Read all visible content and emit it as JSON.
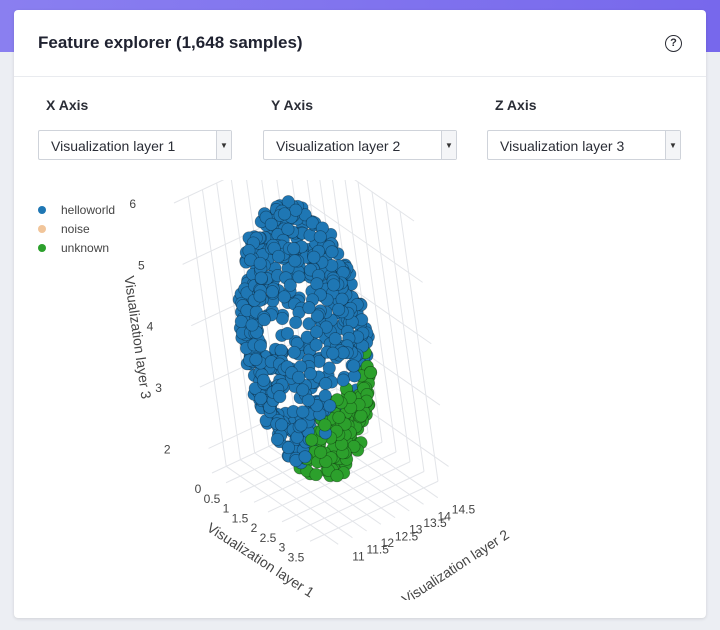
{
  "card": {
    "title": "Feature explorer (1,648 samples)"
  },
  "controls": {
    "x": {
      "label": "X Axis",
      "value": "Visualization layer 1"
    },
    "y": {
      "label": "Y Axis",
      "value": "Visualization layer 2"
    },
    "z": {
      "label": "Z Axis",
      "value": "Visualization layer 3"
    }
  },
  "icons": {
    "help": "help-circle-icon",
    "dropdown": "chevron-down-icon"
  },
  "chart_data": {
    "type": "scatter",
    "subtype": "3d",
    "xlabel": "Visualization layer 1",
    "ylabel": "Visualization layer 2",
    "zlabel": "Visualization layer 3",
    "x_ticks": [
      "0",
      "0.5",
      "1",
      "1.5",
      "2",
      "2.5",
      "3",
      "3.5"
    ],
    "y_ticks": [
      "11",
      "11.5",
      "12",
      "12.5",
      "13",
      "13.5",
      "14",
      "14.5"
    ],
    "z_ticks": [
      "2",
      "3",
      "4",
      "5",
      "6"
    ],
    "xlim": [
      0,
      4
    ],
    "ylim": [
      10.5,
      15
    ],
    "zlim": [
      1.6,
      6
    ],
    "grid": true,
    "legend_position": "top-left",
    "series": [
      {
        "name": "helloworld",
        "color": "#1f77b4",
        "count_visible": 420
      },
      {
        "name": "noise",
        "color": "#f1c59a",
        "count_visible": 0
      },
      {
        "name": "unknown",
        "color": "#2ca02c",
        "count_visible": 300
      }
    ]
  }
}
